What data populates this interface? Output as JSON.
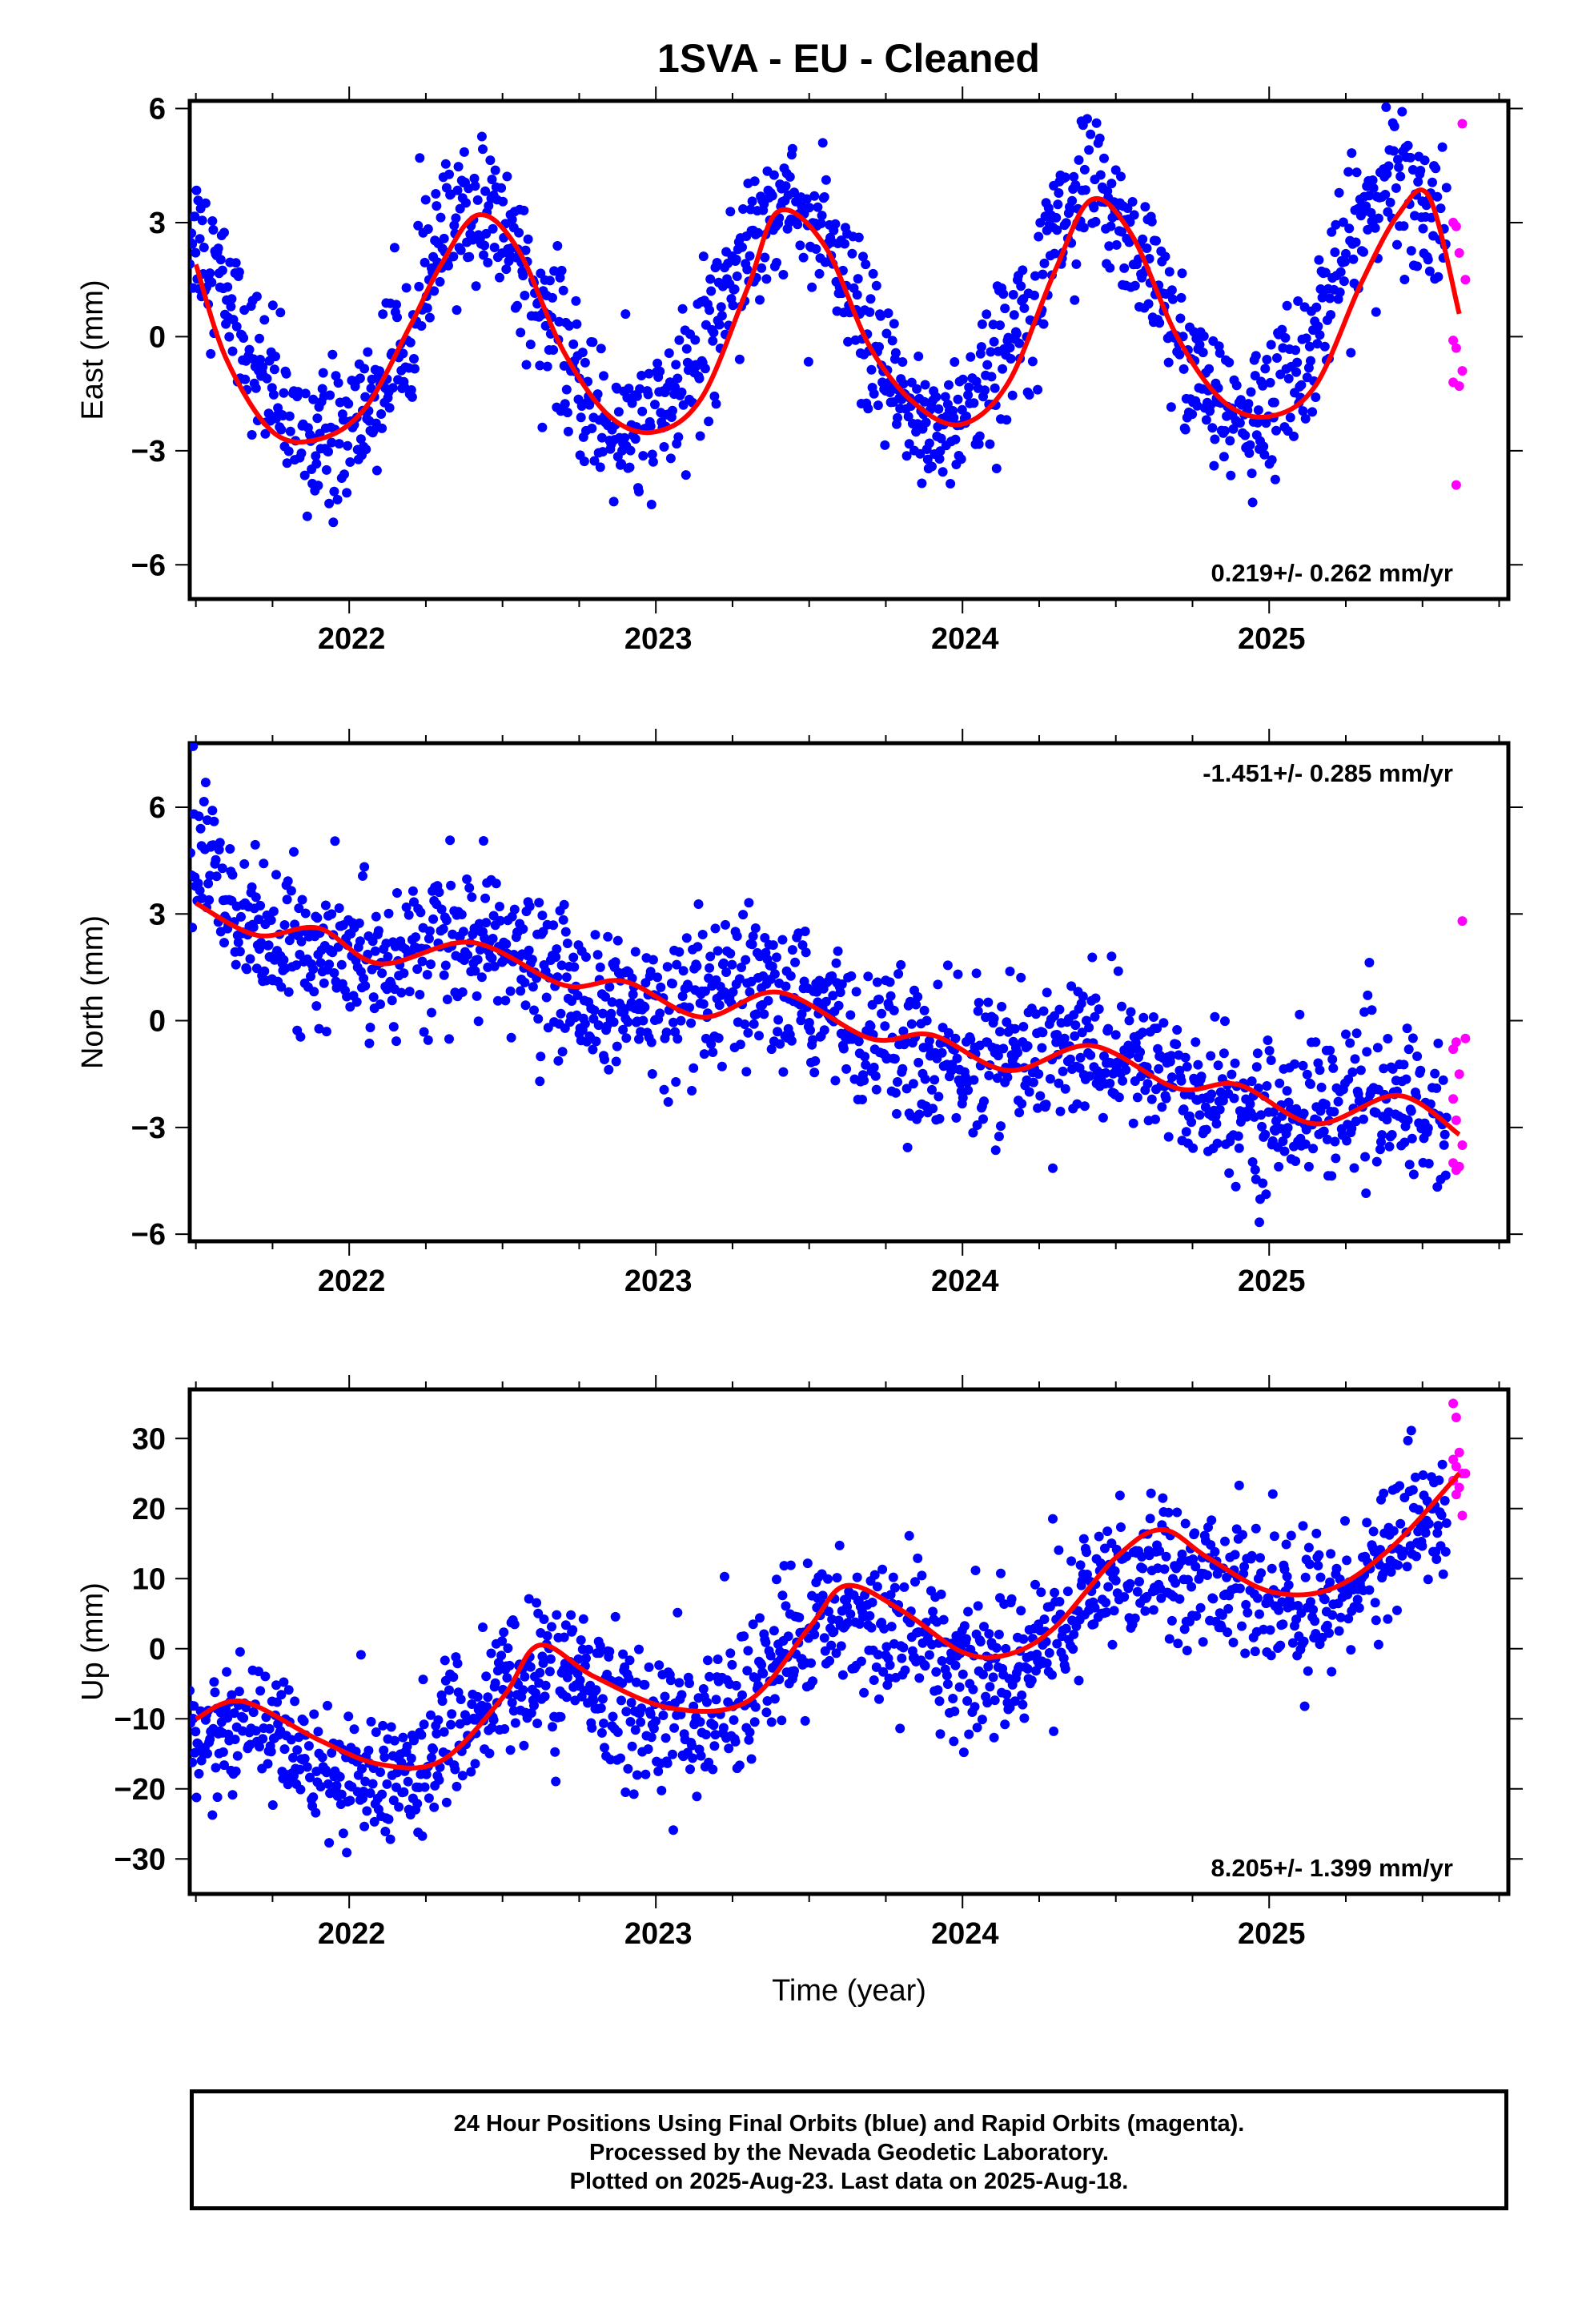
{
  "title": "1SVA  - EU - Cleaned",
  "colors": {
    "final": "#0000ff",
    "rapid": "#ff00ff",
    "fit": "#ff0000"
  },
  "xlabel": "Time (year)",
  "x_tick_labels": [
    "2022",
    "2023",
    "2024",
    "2025"
  ],
  "footer": {
    "line1": "24 Hour Positions Using Final Orbits (blue) and Rapid Orbits (magenta).",
    "line2": "Processed by the Nevada Geodetic Laboratory.",
    "line3": "Plotted on 2025-Aug-23. Last data on 2025-Aug-18."
  },
  "chart_data": [
    {
      "type": "scatter",
      "ylabel": "East (mm)",
      "xlim": [
        2021.48,
        2025.78
      ],
      "ylim": [
        -6.9,
        6.2
      ],
      "y_ticks": [
        -6,
        -3,
        0,
        3,
        6
      ],
      "y_tick_labels": [
        "−6",
        "−3",
        "0",
        "3",
        "6"
      ],
      "x_ticks": [
        2022,
        2023,
        2024,
        2025
      ],
      "x_tick_labels": [
        "2022",
        "2023",
        "2024",
        "2025"
      ],
      "rate_text": "0.219+/- 0.262 mm/yr",
      "rate_position": "bottom-right",
      "model": {
        "trend": 0.219,
        "annual_amp": 3.0,
        "peak_year_fraction": 0.42,
        "semi_amp": 0.2,
        "offset": 0.4,
        "ref": 2023.5
      },
      "scatter_sd": 0.95,
      "fit_curve": {
        "x": [
          2021.5,
          2021.6,
          2021.75,
          2021.9,
          2022.05,
          2022.2,
          2022.3,
          2022.42,
          2022.55,
          2022.7,
          2022.85,
          2023.0,
          2023.15,
          2023.3,
          2023.4,
          2023.55,
          2023.7,
          2023.85,
          2024.0,
          2024.15,
          2024.3,
          2024.42,
          2024.55,
          2024.7,
          2024.85,
          2025.0,
          2025.15,
          2025.3,
          2025.42,
          2025.52,
          2025.62
        ],
        "y": [
          1.9,
          -0.6,
          -2.5,
          -2.7,
          -1.9,
          0.3,
          1.9,
          3.2,
          2.3,
          -0.4,
          -2.1,
          -2.5,
          -1.6,
          1.3,
          3.3,
          2.4,
          -0.3,
          -1.8,
          -2.3,
          -1.2,
          1.7,
          3.6,
          2.7,
          0.0,
          -1.7,
          -2.1,
          -1.3,
          1.4,
          3.2,
          3.7,
          0.6
        ]
      },
      "series": [
        {
          "name": "Final Orbits (blue)",
          "x_range": [
            2021.48,
            2025.58
          ]
        },
        {
          "name": "Rapid Orbits (magenta)",
          "x": [
            2025.6,
            2025.61,
            2025.62,
            2025.6,
            2025.61,
            2025.63,
            2025.6,
            2025.62,
            2025.61,
            2025.63,
            2025.64
          ],
          "y": [
            3.0,
            2.9,
            2.2,
            -0.1,
            -0.3,
            -0.9,
            -1.2,
            -1.3,
            -3.9,
            5.6,
            1.5
          ]
        }
      ]
    },
    {
      "type": "scatter",
      "ylabel": "North (mm)",
      "xlim": [
        2021.48,
        2025.78
      ],
      "ylim": [
        -6.2,
        7.8
      ],
      "y_ticks": [
        -6,
        -3,
        0,
        3,
        6
      ],
      "y_tick_labels": [
        "−6",
        "−3",
        "0",
        "3",
        "6"
      ],
      "x_ticks": [
        2022,
        2023,
        2024,
        2025
      ],
      "x_tick_labels": [
        "2022",
        "2023",
        "2024",
        "2025"
      ],
      "rate_text": "-1.451+/- 0.285 mm/yr",
      "rate_position": "top-right",
      "model": {
        "trend": -1.451,
        "annual_amp": 0.55,
        "peak_year_fraction": 0.42,
        "semi_amp": 0.0,
        "offset": 0.0,
        "ref": 2023.5
      },
      "scatter_sd": 1.0,
      "fit_curve": {
        "x": [
          2021.5,
          2021.7,
          2021.9,
          2022.1,
          2022.4,
          2022.7,
          2022.9,
          2023.15,
          2023.4,
          2023.7,
          2023.9,
          2024.15,
          2024.42,
          2024.7,
          2024.9,
          2025.15,
          2025.42,
          2025.62
        ],
        "y": [
          3.3,
          2.4,
          2.6,
          1.6,
          2.2,
          1.0,
          1.1,
          0.1,
          0.8,
          -0.5,
          -0.4,
          -1.4,
          -0.7,
          -1.9,
          -1.8,
          -2.9,
          -2.1,
          -3.2
        ]
      },
      "series": [
        {
          "name": "Final Orbits (blue)",
          "x_range": [
            2021.48,
            2025.58
          ]
        },
        {
          "name": "Rapid Orbits (magenta)",
          "x": [
            2025.6,
            2025.61,
            2025.62,
            2025.6,
            2025.61,
            2025.63,
            2025.6,
            2025.62,
            2025.61,
            2025.63,
            2025.64
          ],
          "y": [
            -0.8,
            -0.6,
            -1.5,
            -2.2,
            -2.8,
            -3.5,
            -4.0,
            -4.1,
            -4.2,
            2.8,
            -0.5
          ]
        }
      ]
    },
    {
      "type": "scatter",
      "ylabel": "Up (mm)",
      "xlim": [
        2021.48,
        2025.78
      ],
      "ylim": [
        -35,
        37
      ],
      "y_ticks": [
        -30,
        -20,
        -10,
        0,
        10,
        20,
        30
      ],
      "y_tick_labels": [
        "−30",
        "−20",
        "−10",
        "0",
        "10",
        "20",
        "30"
      ],
      "x_ticks": [
        2022,
        2023,
        2024,
        2025
      ],
      "x_tick_labels": [
        "2022",
        "2023",
        "2024",
        "2025"
      ],
      "rate_text": "8.205+/- 1.399 mm/yr",
      "rate_position": "bottom-right",
      "model": {
        "trend": 8.205,
        "annual_amp": 5.5,
        "peak_year_fraction": 0.62,
        "semi_amp": 0.0,
        "offset": -2.0,
        "ref": 2023.5
      },
      "scatter_sd": 5.0,
      "fit_curve": {
        "x": [
          2021.5,
          2021.65,
          2021.9,
          2022.1,
          2022.3,
          2022.5,
          2022.62,
          2022.8,
          2023.05,
          2023.3,
          2023.5,
          2023.62,
          2023.8,
          2024.0,
          2024.15,
          2024.3,
          2024.5,
          2024.65,
          2024.8,
          2025.0,
          2025.2,
          2025.4,
          2025.62
        ],
        "y": [
          -10,
          -7.5,
          -13,
          -16.5,
          -16,
          -7,
          0.5,
          -4,
          -8.5,
          -7.5,
          3,
          9,
          5.5,
          -0.5,
          -0.8,
          3,
          13,
          17,
          13,
          8.2,
          8.5,
          14.5,
          25
        ]
      },
      "series": [
        {
          "name": "Final Orbits (blue)",
          "x_range": [
            2021.48,
            2025.58
          ]
        },
        {
          "name": "Rapid Orbits (magenta)",
          "x": [
            2025.6,
            2025.61,
            2025.62,
            2025.6,
            2025.61,
            2025.63,
            2025.6,
            2025.62,
            2025.61,
            2025.63,
            2025.64
          ],
          "y": [
            35,
            33,
            28,
            27,
            26,
            25,
            24,
            23,
            22,
            19,
            25
          ]
        }
      ]
    }
  ]
}
